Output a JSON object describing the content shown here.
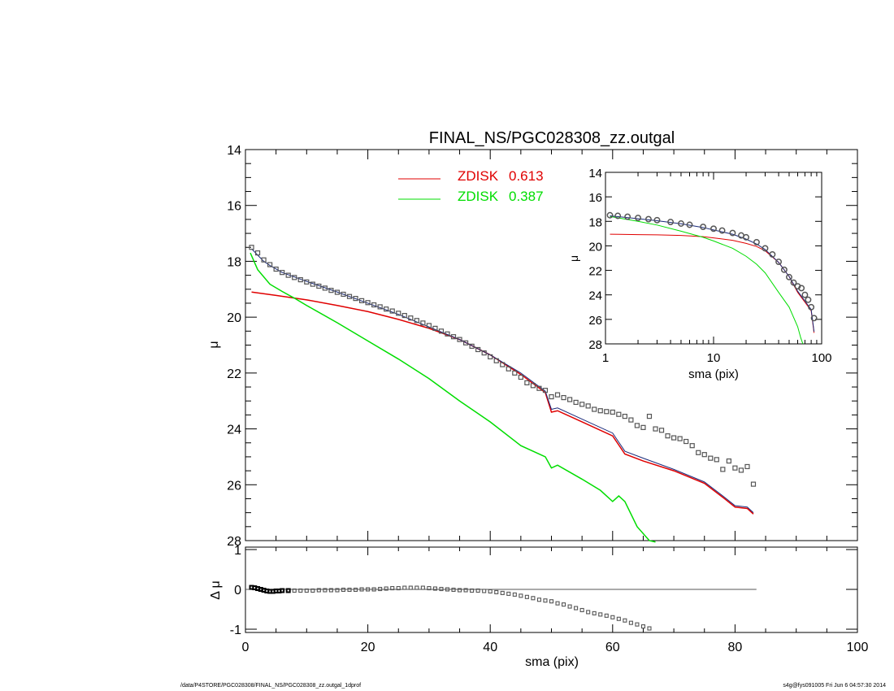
{
  "title": "FINAL_NS/PGC028308_zz.outgal",
  "footer": {
    "path": "/data/P4STORE/PGC028308/FINAL_NS/PGC028308_zz.outgal_1dprof",
    "stamp": "s4g@fys091005  Fri Jun  6 04:57:30 2014"
  },
  "colors": {
    "data": "#555555",
    "model": "#1a2a7a",
    "comp1": "#e00000",
    "comp2": "#00dd00",
    "zero": "#555555"
  },
  "chart_data": [
    {
      "id": "main",
      "type": "line",
      "ylabel": "μ",
      "xlim": [
        0,
        100
      ],
      "ylim": [
        14,
        28
      ],
      "y_inverted": true,
      "x_ticks": [
        0,
        20,
        40,
        60,
        80,
        100
      ],
      "y_ticks": [
        14,
        16,
        18,
        20,
        22,
        24,
        26,
        28
      ],
      "legend": {
        "placement": "top-center",
        "entries": [
          {
            "label": "ZDISK",
            "value": "0.613",
            "color": "#e00000"
          },
          {
            "label": "ZDISK",
            "value": "0.387",
            "color": "#00dd00"
          }
        ]
      },
      "data_points": {
        "x": [
          1,
          2,
          3,
          4,
          5,
          6,
          7,
          8,
          9,
          10,
          11,
          12,
          13,
          14,
          15,
          16,
          17,
          18,
          19,
          20,
          21,
          22,
          23,
          24,
          25,
          26,
          27,
          28,
          29,
          30,
          31,
          32,
          33,
          34,
          35,
          36,
          37,
          38,
          39,
          40,
          41,
          42,
          43,
          44,
          45,
          46,
          47,
          48,
          49,
          50,
          51,
          52,
          53,
          54,
          55,
          56,
          57,
          58,
          59,
          60,
          61,
          62,
          63,
          64,
          65,
          66,
          67,
          68,
          69,
          70,
          71,
          72,
          73,
          74,
          75,
          76,
          77,
          78,
          79,
          80,
          81,
          82,
          83
        ],
        "y": [
          17.5,
          17.7,
          17.95,
          18.12,
          18.28,
          18.4,
          18.5,
          18.58,
          18.66,
          18.74,
          18.82,
          18.89,
          18.96,
          19.04,
          19.11,
          19.18,
          19.26,
          19.33,
          19.41,
          19.48,
          19.56,
          19.63,
          19.71,
          19.78,
          19.86,
          19.94,
          20.03,
          20.12,
          20.21,
          20.3,
          20.4,
          20.5,
          20.6,
          20.7,
          20.8,
          20.92,
          21.04,
          21.16,
          21.28,
          21.42,
          21.56,
          21.7,
          21.85,
          22.0,
          22.15,
          22.35,
          22.45,
          22.55,
          22.62,
          22.85,
          22.78,
          22.88,
          22.95,
          23.05,
          23.12,
          23.18,
          23.3,
          23.35,
          23.38,
          23.4,
          23.48,
          23.55,
          23.68,
          23.88,
          23.95,
          23.55,
          24.0,
          24.05,
          24.25,
          24.32,
          24.35,
          24.45,
          24.6,
          24.85,
          24.92,
          25.05,
          25.1,
          25.45,
          25.15,
          25.4,
          25.48,
          25.35,
          25.98
        ]
      },
      "series": [
        {
          "name": "ZDISK 0.613",
          "color": "#e00000",
          "x": [
            1,
            5,
            10,
            15,
            20,
            25,
            30,
            35,
            40,
            45,
            49,
            50,
            51,
            55,
            60,
            62,
            65,
            70,
            75,
            78,
            80,
            82,
            83
          ],
          "y": [
            19.1,
            19.22,
            19.38,
            19.58,
            19.8,
            20.08,
            20.4,
            20.8,
            21.35,
            22.05,
            22.7,
            23.4,
            23.35,
            23.75,
            24.25,
            24.9,
            25.15,
            25.5,
            25.95,
            26.45,
            26.8,
            26.85,
            27.05
          ]
        },
        {
          "name": "ZDISK 0.387",
          "color": "#00dd00",
          "x": [
            0.8,
            2,
            4,
            6,
            8,
            10,
            15,
            20,
            25,
            30,
            35,
            40,
            45,
            49,
            50,
            51,
            55,
            58,
            60,
            61,
            62,
            64,
            66,
            67
          ],
          "y": [
            17.7,
            18.3,
            18.82,
            19.08,
            19.32,
            19.58,
            20.2,
            20.85,
            21.5,
            22.2,
            23.0,
            23.75,
            24.6,
            25.0,
            25.4,
            25.3,
            25.8,
            26.2,
            26.6,
            26.4,
            26.6,
            27.5,
            28.0,
            28.2
          ]
        },
        {
          "name": "",
          "color": "#1a2a7a",
          "x": [
            1,
            2,
            3,
            4,
            6,
            8,
            10,
            15,
            20,
            25,
            30,
            35,
            40,
            45,
            49,
            50,
            51,
            55,
            60,
            62,
            65,
            70,
            75,
            78,
            80,
            82,
            83
          ],
          "y": [
            17.55,
            17.78,
            18.0,
            18.15,
            18.4,
            18.56,
            18.72,
            19.1,
            19.5,
            19.9,
            20.35,
            20.8,
            21.35,
            22.0,
            22.65,
            23.3,
            23.25,
            23.65,
            24.15,
            24.8,
            25.05,
            25.45,
            25.9,
            26.4,
            26.75,
            26.8,
            27.0
          ]
        }
      ]
    },
    {
      "id": "inset",
      "type": "line",
      "x_scale": "log",
      "xlabel": "sma (pix)",
      "ylabel": "μ",
      "xlim": [
        1,
        100
      ],
      "ylim": [
        14,
        28
      ],
      "y_inverted": true,
      "x_ticks": [
        1,
        10,
        100
      ],
      "y_ticks": [
        14,
        16,
        18,
        20,
        22,
        24,
        26,
        28
      ],
      "data_points": {
        "x": [
          1.1,
          1.3,
          1.6,
          2,
          2.5,
          3,
          4,
          5,
          6,
          8,
          10,
          12,
          15,
          18,
          20,
          25,
          30,
          35,
          40,
          45,
          50,
          55,
          60,
          65,
          70,
          75,
          80,
          85
        ],
        "y": [
          17.5,
          17.55,
          17.62,
          17.72,
          17.82,
          17.9,
          18.05,
          18.18,
          18.28,
          18.45,
          18.6,
          18.75,
          18.95,
          19.15,
          19.3,
          19.7,
          20.2,
          20.7,
          21.3,
          21.95,
          22.55,
          23.0,
          23.3,
          23.45,
          24.0,
          24.4,
          25.0,
          25.9
        ]
      },
      "series": [
        {
          "name": "",
          "color": "#e00000",
          "x": [
            1.1,
            2,
            3,
            5,
            8,
            10,
            15,
            20,
            25,
            30,
            40,
            50,
            60,
            70,
            80,
            85
          ],
          "y": [
            19.05,
            19.08,
            19.1,
            19.15,
            19.25,
            19.35,
            19.55,
            19.8,
            20.05,
            20.4,
            21.35,
            22.5,
            23.8,
            24.6,
            25.3,
            27.1
          ]
        },
        {
          "name": "",
          "color": "#00dd00",
          "x": [
            1.1,
            2,
            3,
            5,
            8,
            10,
            15,
            20,
            25,
            30,
            40,
            50,
            60,
            64,
            67
          ],
          "y": [
            17.6,
            18.0,
            18.3,
            18.8,
            19.3,
            19.6,
            20.2,
            20.85,
            21.5,
            22.2,
            23.8,
            25.0,
            26.6,
            27.5,
            28.0
          ]
        },
        {
          "name": "",
          "color": "#1a2a7a",
          "x": [
            1.1,
            2,
            3,
            5,
            8,
            10,
            15,
            20,
            25,
            30,
            40,
            50,
            60,
            70,
            80,
            85
          ],
          "y": [
            17.55,
            17.78,
            17.95,
            18.2,
            18.5,
            18.7,
            19.05,
            19.45,
            19.85,
            20.3,
            21.35,
            22.5,
            23.7,
            24.5,
            25.2,
            27.0
          ]
        }
      ]
    },
    {
      "id": "residual",
      "type": "scatter",
      "xlabel": "sma (pix)",
      "ylabel": "Δ μ",
      "xlim": [
        0,
        100
      ],
      "ylim": [
        -1,
        1
      ],
      "x_ticks": [
        0,
        20,
        40,
        60,
        80,
        100
      ],
      "y_ticks": [
        -1,
        0,
        1
      ],
      "zero_line": {
        "x": [
          0,
          83.5
        ],
        "y": 0
      },
      "data_points": {
        "x": [
          1,
          1.5,
          2,
          2.5,
          3,
          3.5,
          4,
          4.5,
          5,
          5.5,
          6,
          7,
          8,
          9,
          10,
          11,
          12,
          13,
          14,
          15,
          16,
          17,
          18,
          19,
          20,
          21,
          22,
          23,
          24,
          25,
          26,
          27,
          28,
          29,
          30,
          31,
          32,
          33,
          34,
          35,
          36,
          37,
          38,
          39,
          40,
          41,
          42,
          43,
          44,
          45,
          46,
          47,
          48,
          49,
          50,
          51,
          52,
          53,
          54,
          55,
          56,
          57,
          58,
          59,
          60,
          61,
          62,
          63,
          64,
          65,
          66
        ],
        "y": [
          0.05,
          0.04,
          0.02,
          0.0,
          -0.02,
          -0.04,
          -0.05,
          -0.05,
          -0.04,
          -0.04,
          -0.03,
          -0.03,
          -0.03,
          -0.03,
          -0.03,
          -0.03,
          -0.02,
          -0.02,
          -0.02,
          -0.02,
          -0.01,
          -0.01,
          -0.01,
          0.0,
          0.0,
          0.0,
          0.01,
          0.02,
          0.03,
          0.03,
          0.04,
          0.04,
          0.04,
          0.04,
          0.03,
          0.02,
          0.01,
          0.0,
          -0.01,
          -0.02,
          -0.02,
          -0.03,
          -0.03,
          -0.04,
          -0.05,
          -0.07,
          -0.09,
          -0.11,
          -0.13,
          -0.16,
          -0.19,
          -0.22,
          -0.26,
          -0.28,
          -0.3,
          -0.35,
          -0.38,
          -0.43,
          -0.47,
          -0.52,
          -0.57,
          -0.6,
          -0.63,
          -0.66,
          -0.7,
          -0.74,
          -0.78,
          -0.84,
          -0.88,
          -0.93,
          -0.98
        ]
      }
    }
  ]
}
